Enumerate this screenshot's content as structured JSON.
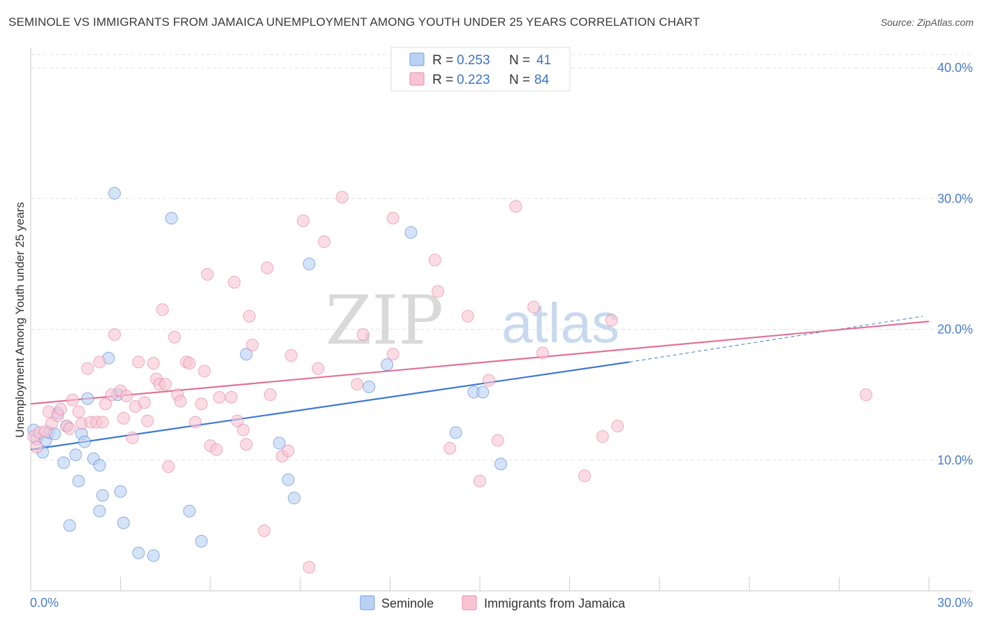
{
  "title": "SEMINOLE VS IMMIGRANTS FROM JAMAICA UNEMPLOYMENT AMONG YOUTH UNDER 25 YEARS CORRELATION CHART",
  "source": "Source: ZipAtlas.com",
  "watermark": {
    "zip": "ZIP",
    "atlas": "atlas"
  },
  "legend": {
    "r_label": "R = ",
    "n_label": "N = ",
    "entries": [
      {
        "name": "Seminole",
        "r": "0.253",
        "n": "41",
        "color": "#6fa0e0",
        "fill": "#b9d1f3"
      },
      {
        "name": "Immigrants from Jamaica",
        "r": "0.223",
        "n": "84",
        "color": "#e88aa8",
        "fill": "#f8c4d4"
      }
    ]
  },
  "chart_data": {
    "type": "scatter",
    "xlabel": "",
    "ylabel": "Unemployment Among Youth under 25 years",
    "xlim": [
      0,
      30
    ],
    "ylim": [
      0,
      40
    ],
    "x_tick_labels": [
      "0.0%",
      "30.0%"
    ],
    "y_ticks": [
      {
        "value": 10,
        "label": "10.0%"
      },
      {
        "value": 20,
        "label": "20.0%"
      },
      {
        "value": 30,
        "label": "30.0%"
      },
      {
        "value": 40,
        "label": "40.0%"
      }
    ],
    "grid": true,
    "series": [
      {
        "name": "Seminole",
        "color": "#3f78d0",
        "fill": "#b9d1f3",
        "trend": {
          "x0": 0,
          "y0": 10.8,
          "x1": 20.0,
          "y1": 17.5,
          "dash_to_x": 29.8,
          "dash_to_y": 21.0
        },
        "points": [
          [
            0.1,
            12.3
          ],
          [
            0.2,
            11.6
          ],
          [
            0.4,
            10.6
          ],
          [
            0.5,
            11.5
          ],
          [
            0.6,
            12.1
          ],
          [
            0.8,
            12.0
          ],
          [
            0.9,
            13.6
          ],
          [
            1.1,
            9.8
          ],
          [
            1.2,
            12.6
          ],
          [
            1.3,
            5.0
          ],
          [
            1.5,
            10.4
          ],
          [
            1.6,
            8.4
          ],
          [
            1.7,
            12.0
          ],
          [
            1.8,
            11.4
          ],
          [
            1.9,
            14.7
          ],
          [
            2.1,
            10.1
          ],
          [
            2.3,
            9.6
          ],
          [
            2.3,
            6.1
          ],
          [
            2.4,
            7.3
          ],
          [
            2.6,
            17.8
          ],
          [
            2.8,
            30.4
          ],
          [
            2.9,
            15.0
          ],
          [
            3.0,
            7.6
          ],
          [
            3.1,
            5.2
          ],
          [
            3.6,
            2.9
          ],
          [
            4.1,
            2.7
          ],
          [
            4.7,
            28.5
          ],
          [
            5.3,
            6.1
          ],
          [
            5.7,
            3.8
          ],
          [
            7.2,
            18.1
          ],
          [
            8.3,
            11.3
          ],
          [
            8.6,
            8.5
          ],
          [
            8.8,
            7.1
          ],
          [
            9.3,
            25.0
          ],
          [
            11.3,
            15.6
          ],
          [
            11.9,
            17.3
          ],
          [
            12.7,
            27.4
          ],
          [
            14.2,
            12.1
          ],
          [
            14.8,
            15.2
          ],
          [
            15.1,
            15.2
          ],
          [
            15.7,
            9.7
          ]
        ]
      },
      {
        "name": "Immigrants from Jamaica",
        "color": "#e07298",
        "fill": "#f8c4d4",
        "trend": {
          "x0": 0,
          "y0": 14.3,
          "x1": 30.0,
          "y1": 20.6
        },
        "points": [
          [
            0.1,
            11.8
          ],
          [
            0.2,
            11.0
          ],
          [
            0.3,
            12.1
          ],
          [
            0.5,
            12.2
          ],
          [
            0.6,
            13.7
          ],
          [
            0.7,
            12.8
          ],
          [
            0.9,
            13.4
          ],
          [
            1.0,
            13.9
          ],
          [
            1.2,
            12.6
          ],
          [
            1.3,
            12.4
          ],
          [
            1.4,
            14.6
          ],
          [
            1.6,
            13.7
          ],
          [
            1.7,
            12.8
          ],
          [
            1.9,
            17.0
          ],
          [
            2.0,
            12.9
          ],
          [
            2.2,
            12.9
          ],
          [
            2.3,
            17.5
          ],
          [
            2.4,
            12.9
          ],
          [
            2.5,
            14.3
          ],
          [
            2.7,
            15.0
          ],
          [
            2.8,
            19.6
          ],
          [
            3.0,
            15.3
          ],
          [
            3.1,
            13.2
          ],
          [
            3.2,
            14.9
          ],
          [
            3.4,
            11.7
          ],
          [
            3.5,
            14.1
          ],
          [
            3.6,
            17.5
          ],
          [
            3.8,
            14.4
          ],
          [
            3.9,
            13.0
          ],
          [
            4.1,
            17.4
          ],
          [
            4.2,
            16.2
          ],
          [
            4.3,
            15.8
          ],
          [
            4.4,
            21.5
          ],
          [
            4.5,
            15.8
          ],
          [
            4.6,
            9.5
          ],
          [
            4.8,
            19.4
          ],
          [
            4.9,
            15.0
          ],
          [
            5.0,
            14.5
          ],
          [
            5.2,
            17.5
          ],
          [
            5.3,
            17.4
          ],
          [
            5.5,
            12.9
          ],
          [
            5.7,
            14.3
          ],
          [
            5.8,
            16.8
          ],
          [
            5.9,
            24.2
          ],
          [
            6.0,
            11.1
          ],
          [
            6.2,
            10.8
          ],
          [
            6.3,
            14.8
          ],
          [
            6.7,
            14.8
          ],
          [
            6.8,
            23.6
          ],
          [
            6.9,
            13.0
          ],
          [
            7.1,
            12.3
          ],
          [
            7.2,
            11.2
          ],
          [
            7.3,
            21.0
          ],
          [
            7.4,
            18.8
          ],
          [
            7.8,
            4.6
          ],
          [
            7.9,
            24.7
          ],
          [
            8.0,
            15.0
          ],
          [
            8.4,
            10.3
          ],
          [
            8.6,
            10.7
          ],
          [
            8.7,
            18.0
          ],
          [
            9.1,
            28.3
          ],
          [
            9.3,
            1.8
          ],
          [
            9.6,
            17.0
          ],
          [
            9.8,
            26.7
          ],
          [
            10.4,
            30.1
          ],
          [
            10.9,
            15.8
          ],
          [
            11.1,
            19.6
          ],
          [
            12.1,
            18.1
          ],
          [
            12.1,
            28.5
          ],
          [
            13.5,
            25.3
          ],
          [
            13.6,
            22.9
          ],
          [
            14.0,
            10.9
          ],
          [
            14.6,
            21.0
          ],
          [
            15.0,
            8.4
          ],
          [
            15.3,
            16.1
          ],
          [
            15.6,
            11.5
          ],
          [
            16.2,
            29.4
          ],
          [
            16.8,
            21.7
          ],
          [
            17.1,
            18.2
          ],
          [
            18.5,
            8.8
          ],
          [
            19.1,
            11.8
          ],
          [
            19.4,
            20.7
          ],
          [
            19.6,
            12.6
          ],
          [
            27.9,
            15.0
          ]
        ]
      }
    ]
  }
}
